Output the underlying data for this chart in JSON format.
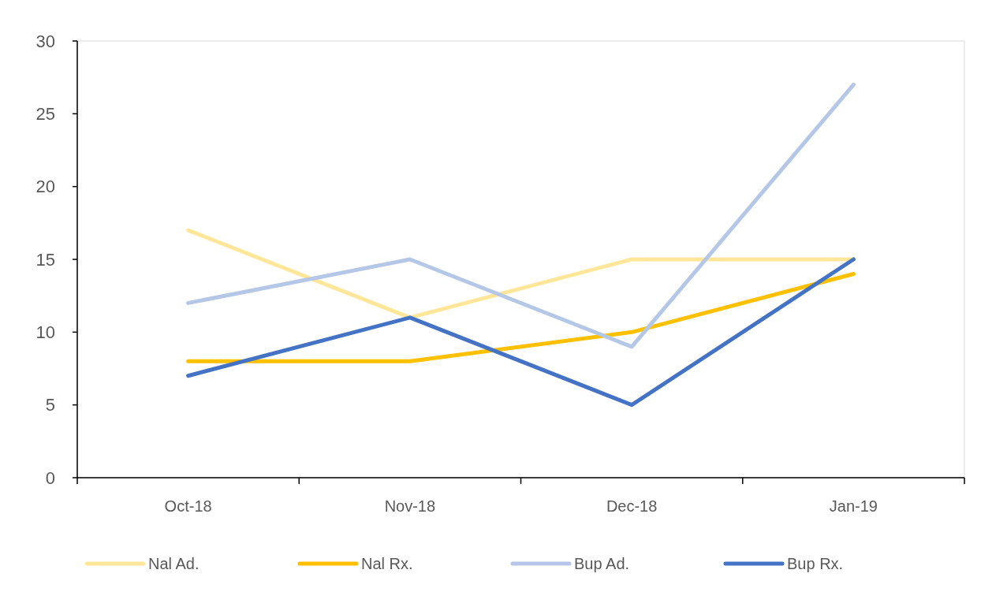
{
  "chart_data": {
    "type": "line",
    "categories": [
      "Oct-18",
      "Nov-18",
      "Dec-18",
      "Jan-19"
    ],
    "series": [
      {
        "name": "Nal Ad.",
        "color": "#ffe699",
        "values": [
          17,
          11,
          15,
          15
        ]
      },
      {
        "name": "Nal Rx.",
        "color": "#ffc000",
        "values": [
          8,
          8,
          10,
          14
        ]
      },
      {
        "name": "Bup Ad.",
        "color": "#b4c7e7",
        "values": [
          12,
          15,
          9,
          27
        ]
      },
      {
        "name": "Bup Rx.",
        "color": "#4472c4",
        "values": [
          7,
          11,
          5,
          15
        ]
      }
    ],
    "ylim": [
      0,
      30
    ],
    "yticks": [
      0,
      5,
      10,
      15,
      20,
      25,
      30
    ],
    "grid": false,
    "legend": "bottom",
    "marker": "none",
    "line_style": "solid"
  }
}
